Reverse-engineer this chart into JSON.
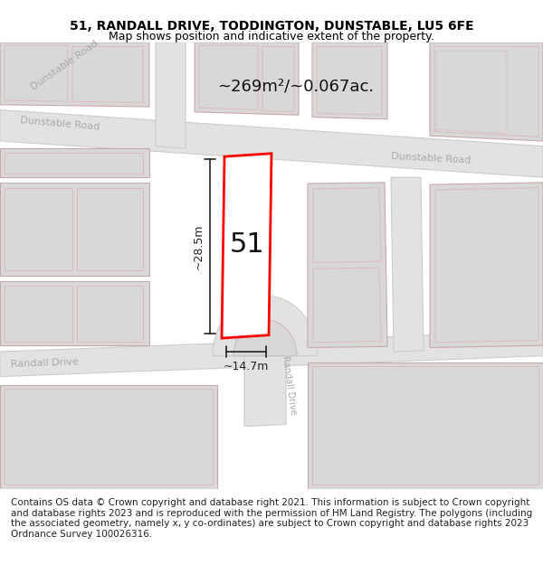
{
  "title_line1": "51, RANDALL DRIVE, TODDINGTON, DUNSTABLE, LU5 6FE",
  "title_line2": "Map shows position and indicative extent of the property.",
  "area_text": "~269m²/~0.067ac.",
  "plot_number": "51",
  "dim_height": "~28.5m",
  "dim_width": "~14.7m",
  "footer_text": "Contains OS data © Crown copyright and database right 2021. This information is subject to Crown copyright and database rights 2023 and is reproduced with the permission of HM Land Registry. The polygons (including the associated geometry, namely x, y co-ordinates) are subject to Crown copyright and database rights 2023 Ordnance Survey 100026316.",
  "bg_color": "#f0f0f0",
  "road_fill": "#e2e2e2",
  "road_stroke": "#cccccc",
  "building_fill": "#d8d8d8",
  "building_stroke": "#c8a8a8",
  "plot_stroke": "#ff0000",
  "plot_fill": "#ffffff",
  "dim_color": "#222222",
  "road_label_color": "#aaaaaa",
  "title_fontsize": 10,
  "subtitle_fontsize": 9,
  "label_fontsize": 13,
  "plot_label_fontsize": 22,
  "footer_fontsize": 7.5
}
